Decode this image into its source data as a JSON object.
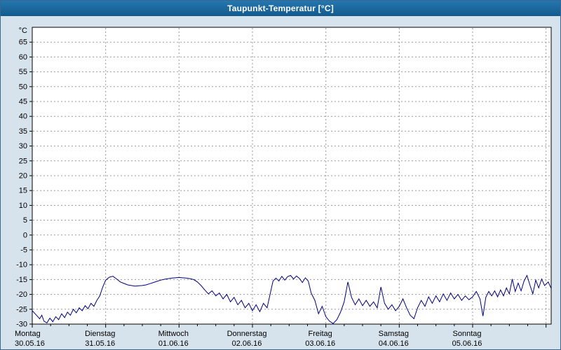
{
  "window": {
    "title": "Taupunkt-Temperatur [°C]"
  },
  "colors": {
    "titlebar_hi": "#2577b0",
    "titlebar_lo": "#135a8c",
    "titlebar_text": "#ffffff",
    "window_bg": "#d7e3ec",
    "window_border": "#39678f",
    "plot_bg": "#ffffff",
    "plot_border": "#000000",
    "grid": "#9a9a9a",
    "line": "#000080"
  },
  "chart_data": {
    "type": "line",
    "title": "Taupunkt-Temperatur [°C]",
    "y_unit": "°C",
    "ylabel": "Taupunkt-Temperatur",
    "ylim": [
      -30,
      70
    ],
    "y_ticks": [
      65,
      60,
      55,
      50,
      45,
      40,
      35,
      30,
      25,
      20,
      15,
      10,
      5,
      0,
      -5,
      -10,
      -15,
      -20,
      -25,
      -30
    ],
    "grid": true,
    "grid_style": "dashed",
    "legend_position": "none",
    "x_domain_days": [
      0,
      7.07
    ],
    "x_gridlines_days": [
      1,
      2,
      3,
      4,
      5,
      6,
      7
    ],
    "x_minor_tick_step_days": 0.25,
    "x_labels": [
      {
        "t": 0,
        "day": "Montag",
        "date": "30.05.16"
      },
      {
        "t": 1,
        "day": "Dienstag",
        "date": "31.05.16"
      },
      {
        "t": 2,
        "day": "Mittwoch",
        "date": "01.06.16"
      },
      {
        "t": 3,
        "day": "Donnerstag",
        "date": "02.06.16"
      },
      {
        "t": 4,
        "day": "Freitag",
        "date": "03.06.16"
      },
      {
        "t": 5,
        "day": "Samstag",
        "date": "04.06.16"
      },
      {
        "t": 6,
        "day": "Sonntag",
        "date": "05.06.16"
      }
    ],
    "series": [
      {
        "name": "Taupunkt-Temperatur",
        "color": "#000080",
        "points": [
          [
            0.0,
            -25.5
          ],
          [
            0.05,
            -26.8
          ],
          [
            0.1,
            -28.2
          ],
          [
            0.13,
            -27.0
          ],
          [
            0.16,
            -29.0
          ],
          [
            0.2,
            -29.6
          ],
          [
            0.24,
            -28.0
          ],
          [
            0.28,
            -29.2
          ],
          [
            0.32,
            -27.5
          ],
          [
            0.36,
            -28.5
          ],
          [
            0.4,
            -26.5
          ],
          [
            0.44,
            -27.8
          ],
          [
            0.48,
            -26.0
          ],
          [
            0.52,
            -27.0
          ],
          [
            0.56,
            -25.0
          ],
          [
            0.6,
            -26.2
          ],
          [
            0.64,
            -24.5
          ],
          [
            0.68,
            -25.5
          ],
          [
            0.72,
            -23.8
          ],
          [
            0.76,
            -24.8
          ],
          [
            0.8,
            -23.0
          ],
          [
            0.84,
            -24.0
          ],
          [
            0.88,
            -22.0
          ],
          [
            0.92,
            -20.5
          ],
          [
            0.96,
            -17.5
          ],
          [
            1.0,
            -15.2
          ],
          [
            1.05,
            -14.2
          ],
          [
            1.1,
            -13.9
          ],
          [
            1.15,
            -14.8
          ],
          [
            1.2,
            -15.8
          ],
          [
            1.25,
            -16.3
          ],
          [
            1.3,
            -16.8
          ],
          [
            1.35,
            -17.0
          ],
          [
            1.4,
            -17.2
          ],
          [
            1.45,
            -17.1
          ],
          [
            1.5,
            -17.0
          ],
          [
            1.55,
            -16.8
          ],
          [
            1.6,
            -16.4
          ],
          [
            1.65,
            -16.0
          ],
          [
            1.7,
            -15.6
          ],
          [
            1.75,
            -15.2
          ],
          [
            1.8,
            -14.9
          ],
          [
            1.85,
            -14.7
          ],
          [
            1.9,
            -14.5
          ],
          [
            1.95,
            -14.4
          ],
          [
            2.0,
            -14.3
          ],
          [
            2.05,
            -14.4
          ],
          [
            2.1,
            -14.5
          ],
          [
            2.15,
            -14.7
          ],
          [
            2.2,
            -15.0
          ],
          [
            2.25,
            -15.8
          ],
          [
            2.3,
            -17.0
          ],
          [
            2.35,
            -18.5
          ],
          [
            2.4,
            -19.8
          ],
          [
            2.45,
            -18.8
          ],
          [
            2.5,
            -20.5
          ],
          [
            2.55,
            -19.5
          ],
          [
            2.6,
            -21.5
          ],
          [
            2.65,
            -20.0
          ],
          [
            2.7,
            -22.5
          ],
          [
            2.75,
            -21.0
          ],
          [
            2.8,
            -23.5
          ],
          [
            2.85,
            -22.0
          ],
          [
            2.9,
            -24.5
          ],
          [
            2.95,
            -23.0
          ],
          [
            3.0,
            -25.5
          ],
          [
            3.05,
            -23.5
          ],
          [
            3.1,
            -25.8
          ],
          [
            3.15,
            -23.0
          ],
          [
            3.2,
            -24.5
          ],
          [
            3.24,
            -20.0
          ],
          [
            3.28,
            -15.5
          ],
          [
            3.32,
            -14.5
          ],
          [
            3.36,
            -15.5
          ],
          [
            3.4,
            -13.9
          ],
          [
            3.44,
            -15.2
          ],
          [
            3.48,
            -14.0
          ],
          [
            3.52,
            -13.6
          ],
          [
            3.56,
            -14.8
          ],
          [
            3.6,
            -13.8
          ],
          [
            3.64,
            -14.6
          ],
          [
            3.68,
            -16.0
          ],
          [
            3.72,
            -14.4
          ],
          [
            3.76,
            -15.5
          ],
          [
            3.8,
            -19.5
          ],
          [
            3.85,
            -22.0
          ],
          [
            3.9,
            -26.5
          ],
          [
            3.95,
            -24.0
          ],
          [
            4.0,
            -27.5
          ],
          [
            4.05,
            -29.0
          ],
          [
            4.1,
            -29.8
          ],
          [
            4.15,
            -28.5
          ],
          [
            4.2,
            -26.0
          ],
          [
            4.25,
            -22.5
          ],
          [
            4.3,
            -15.8
          ],
          [
            4.35,
            -21.0
          ],
          [
            4.4,
            -23.5
          ],
          [
            4.45,
            -21.5
          ],
          [
            4.5,
            -23.8
          ],
          [
            4.55,
            -22.0
          ],
          [
            4.6,
            -24.0
          ],
          [
            4.65,
            -22.5
          ],
          [
            4.7,
            -24.5
          ],
          [
            4.75,
            -17.5
          ],
          [
            4.8,
            -23.0
          ],
          [
            4.85,
            -25.0
          ],
          [
            4.9,
            -23.5
          ],
          [
            4.95,
            -25.5
          ],
          [
            5.0,
            -24.0
          ],
          [
            5.05,
            -21.5
          ],
          [
            5.1,
            -24.5
          ],
          [
            5.15,
            -27.0
          ],
          [
            5.2,
            -28.2
          ],
          [
            5.25,
            -24.5
          ],
          [
            5.3,
            -22.0
          ],
          [
            5.35,
            -24.0
          ],
          [
            5.4,
            -20.8
          ],
          [
            5.45,
            -23.0
          ],
          [
            5.5,
            -20.5
          ],
          [
            5.55,
            -22.5
          ],
          [
            5.6,
            -19.8
          ],
          [
            5.65,
            -22.0
          ],
          [
            5.7,
            -19.5
          ],
          [
            5.75,
            -21.5
          ],
          [
            5.8,
            -20.0
          ],
          [
            5.85,
            -22.0
          ],
          [
            5.9,
            -20.5
          ],
          [
            5.95,
            -21.8
          ],
          [
            6.0,
            -20.8
          ],
          [
            6.05,
            -19.0
          ],
          [
            6.1,
            -21.5
          ],
          [
            6.14,
            -27.3
          ],
          [
            6.18,
            -21.0
          ],
          [
            6.22,
            -19.0
          ],
          [
            6.26,
            -20.5
          ],
          [
            6.3,
            -18.8
          ],
          [
            6.34,
            -20.8
          ],
          [
            6.38,
            -18.5
          ],
          [
            6.42,
            -20.5
          ],
          [
            6.46,
            -17.8
          ],
          [
            6.5,
            -19.8
          ],
          [
            6.54,
            -14.8
          ],
          [
            6.58,
            -19.0
          ],
          [
            6.62,
            -16.2
          ],
          [
            6.66,
            -18.8
          ],
          [
            6.7,
            -15.5
          ],
          [
            6.74,
            -13.6
          ],
          [
            6.78,
            -16.8
          ],
          [
            6.82,
            -19.8
          ],
          [
            6.86,
            -15.2
          ],
          [
            6.9,
            -17.8
          ],
          [
            6.94,
            -14.8
          ],
          [
            6.98,
            -17.0
          ],
          [
            7.03,
            -15.8
          ],
          [
            7.07,
            -18.0
          ]
        ]
      }
    ]
  }
}
